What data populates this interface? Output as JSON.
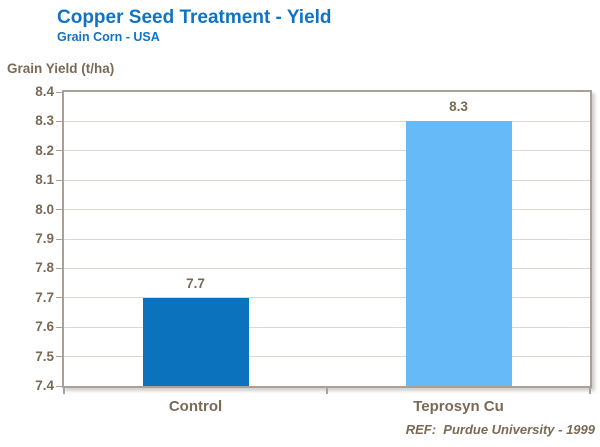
{
  "header": {
    "title": "Copper Seed Treatment - Yield",
    "subtitle": "Grain Corn - USA"
  },
  "axis": {
    "y_label": "Grain Yield (t/ha)"
  },
  "footer": {
    "reference": "REF:  Purdue University - 1999"
  },
  "colors": {
    "title_blue": "#1173C4",
    "text_brown": "#7A6A55",
    "plot_border": "#A9A098",
    "gridline": "#DCD7D1",
    "bar_control": "#0B72BE",
    "bar_teprosyn": "#66BAF8"
  },
  "chart_data": {
    "type": "bar",
    "title": "Copper Seed Treatment - Yield",
    "subtitle": "Grain Corn - USA",
    "xlabel": "",
    "ylabel": "Grain Yield (t/ha)",
    "categories": [
      "Control",
      "Teprosyn Cu"
    ],
    "values": [
      7.7,
      8.3
    ],
    "value_labels": [
      "7.7",
      "8.3"
    ],
    "bar_colors": [
      "#0B72BE",
      "#66BAF8"
    ],
    "ylim": [
      7.4,
      8.4
    ],
    "ytick_step": 0.1,
    "ytick_labels": [
      "8.4",
      "8.3",
      "8.2",
      "8.1",
      "8.0",
      "7.9",
      "7.8",
      "7.7",
      "7.6",
      "7.5",
      "7.4"
    ],
    "grid": true,
    "legend": "none",
    "annotation": "REF:  Purdue University - 1999"
  }
}
